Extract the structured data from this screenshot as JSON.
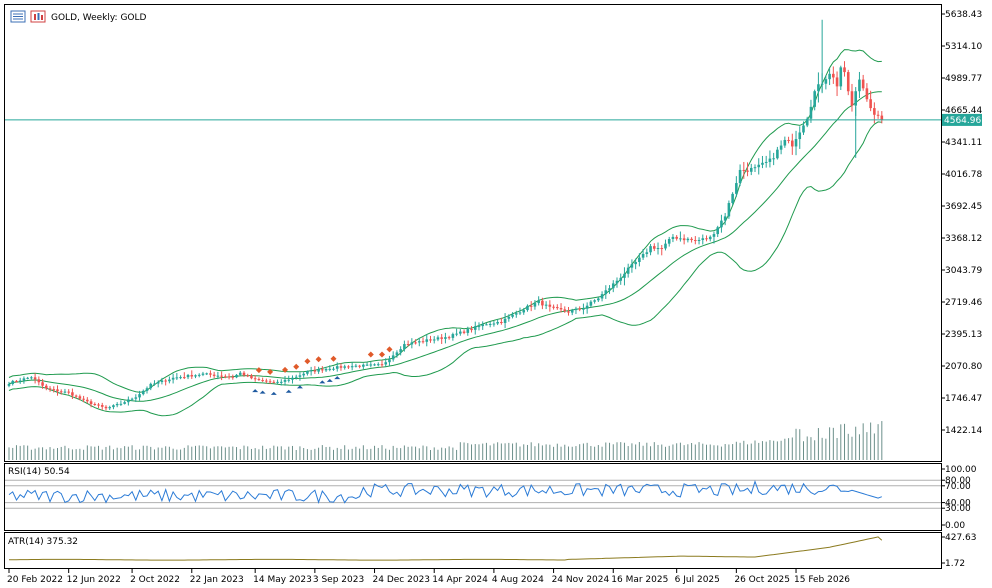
{
  "header": {
    "symbol_title": "GOLD, Weekly:  GOLD",
    "icons": [
      "list-icon",
      "chart-bars-icon"
    ]
  },
  "colors": {
    "bull": "#26a69a",
    "bear": "#ef5350",
    "bands": "#1f9a4e",
    "price_line": "#26a69a",
    "rsi": "#2b7bd6",
    "atr": "#8b7a1e",
    "volume": "#26a69a",
    "buy_marker": "#1e5aa0",
    "sell_marker": "#e05a2a"
  },
  "chart_data": [
    {
      "type": "candlestick",
      "title": "GOLD, Weekly:  GOLD",
      "y_ticks": [
        "5638.43",
        "5314.10",
        "4989.77",
        "4665.44",
        "4341.11",
        "4016.78",
        "3692.45",
        "3368.12",
        "3043.79",
        "2719.46",
        "2395.13",
        "2070.80",
        "1746.47",
        "1422.14"
      ],
      "ylim": [
        1300,
        5700
      ],
      "current_price": "4564.96",
      "x_ticks": [
        "20 Feb 2022",
        "12 Jun 2022",
        "2 Oct 2022",
        "22 Jan 2023",
        "14 May 2023",
        "3 Sep 2023",
        "24 Dec 2023",
        "14 Apr 2024",
        "4 Aug 2024",
        "24 Nov 2024",
        "16 Mar 2025",
        "6 Jul 2025",
        "26 Oct 2025",
        "15 Feb 2026"
      ],
      "close_anchors": [
        [
          0,
          1900
        ],
        [
          6,
          1960
        ],
        [
          10,
          1840
        ],
        [
          16,
          1800
        ],
        [
          20,
          1720
        ],
        [
          26,
          1640
        ],
        [
          30,
          1690
        ],
        [
          34,
          1760
        ],
        [
          38,
          1880
        ],
        [
          44,
          1950
        ],
        [
          52,
          1990
        ],
        [
          60,
          1960
        ],
        [
          62,
          2000
        ],
        [
          66,
          1930
        ],
        [
          72,
          1900
        ],
        [
          76,
          1950
        ],
        [
          80,
          2010
        ],
        [
          86,
          2050
        ],
        [
          92,
          2070
        ],
        [
          100,
          2080
        ],
        [
          106,
          2290
        ],
        [
          112,
          2330
        ],
        [
          118,
          2370
        ],
        [
          122,
          2420
        ],
        [
          128,
          2500
        ],
        [
          132,
          2520
        ],
        [
          138,
          2650
        ],
        [
          142,
          2720
        ],
        [
          145,
          2660
        ],
        [
          150,
          2620
        ],
        [
          154,
          2660
        ],
        [
          158,
          2760
        ],
        [
          162,
          2900
        ],
        [
          166,
          3050
        ],
        [
          170,
          3190
        ],
        [
          172,
          3280
        ],
        [
          175,
          3260
        ],
        [
          178,
          3380
        ],
        [
          184,
          3340
        ],
        [
          188,
          3370
        ],
        [
          192,
          3600
        ],
        [
          196,
          4050
        ],
        [
          200,
          4070
        ],
        [
          204,
          4150
        ],
        [
          208,
          4350
        ],
        [
          210,
          4320
        ],
        [
          214,
          4600
        ],
        [
          216,
          4850
        ],
        [
          218,
          4950
        ],
        [
          220,
          5050
        ],
        [
          222,
          4920
        ],
        [
          223,
          5100
        ],
        [
          224,
          5020
        ],
        [
          226,
          4700
        ],
        [
          228,
          4980
        ],
        [
          230,
          4800
        ],
        [
          232,
          4600
        ],
        [
          234,
          4564.96
        ]
      ],
      "volume_note": "volume histogram, relative heights",
      "markers_buy_weeks": [
        66,
        68,
        71,
        75,
        78,
        84,
        86,
        88
      ],
      "markers_sell_weeks": [
        67,
        70,
        74,
        77,
        80,
        83,
        87,
        97,
        100,
        102
      ]
    },
    {
      "type": "line",
      "label": "RSI(14) 50.54",
      "y_ticks": [
        "100.00",
        "80.00",
        "70.00",
        "40.00",
        "30.00",
        "0.00"
      ],
      "levels": [
        80,
        70,
        40,
        30
      ],
      "ylim": [
        0,
        100
      ],
      "last_value": 50.54
    },
    {
      "type": "line",
      "label": "ATR(14) 375.32",
      "y_ticks": [
        "427.63",
        "1.72"
      ],
      "ylim": [
        1.72,
        427.63
      ],
      "last_value": 375.32
    }
  ]
}
